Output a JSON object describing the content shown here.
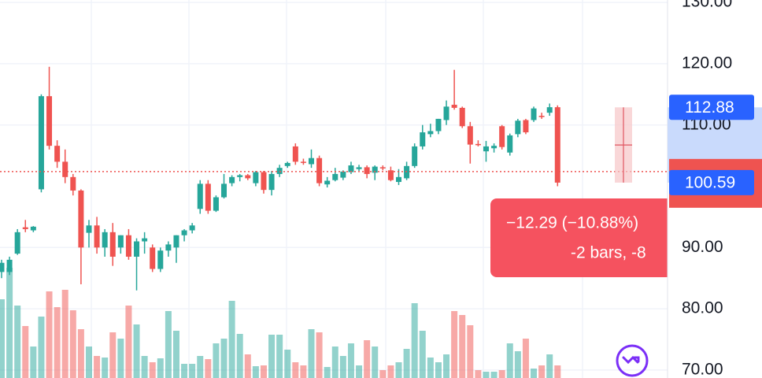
{
  "chart_data": {
    "type": "candlestick",
    "ylim": [
      68.7,
      130.4
    ],
    "yticks": [
      {
        "value": 70,
        "label": "70.00"
      },
      {
        "value": 80,
        "label": "80.00"
      },
      {
        "value": 90,
        "label": "90.00"
      },
      {
        "value": 110,
        "label": "110.00"
      },
      {
        "value": 120,
        "label": "120.00"
      },
      {
        "value": 130,
        "label": "130.00"
      }
    ],
    "grid": true,
    "up_color": "#26a69a",
    "down_color": "#ef5350",
    "candles": [
      [
        86,
        88,
        85,
        87.5
      ],
      [
        86,
        88.5,
        85.5,
        88
      ],
      [
        89,
        93,
        88.8,
        92.5
      ],
      [
        93.3,
        94.5,
        92.5,
        93
      ],
      [
        92.8,
        93.5,
        92.5,
        93.4
      ],
      [
        99.5,
        115,
        99,
        114.7
      ],
      [
        114.7,
        119.5,
        106,
        106.6
      ],
      [
        106.6,
        107.5,
        103,
        104
      ],
      [
        104,
        106,
        100.5,
        101.5
      ],
      [
        101.5,
        102,
        98.5,
        99.3
      ],
      [
        99.3,
        99.5,
        84,
        90
      ],
      [
        92.4,
        94.5,
        90,
        93.6
      ],
      [
        93.6,
        95,
        89,
        90
      ],
      [
        90,
        93,
        88.5,
        92.5
      ],
      [
        92.5,
        94,
        87,
        88.5
      ],
      [
        90,
        92,
        89,
        92
      ],
      [
        92,
        93,
        88,
        88.5
      ],
      [
        88.5,
        91.5,
        83,
        91
      ],
      [
        91,
        92.5,
        89,
        91.5
      ],
      [
        90,
        90.5,
        86,
        86.5
      ],
      [
        86.5,
        90,
        86,
        89.5
      ],
      [
        89.5,
        91,
        88.5,
        90.5
      ],
      [
        90,
        92,
        87.5,
        92
      ],
      [
        92,
        93,
        91,
        92.8
      ],
      [
        92.8,
        94,
        92.3,
        93.6
      ],
      [
        96.3,
        101,
        95.5,
        100.4
      ],
      [
        100.4,
        101,
        95.5,
        96
      ],
      [
        96,
        98.5,
        95.8,
        98.2
      ],
      [
        98.2,
        102,
        98,
        100.4
      ],
      [
        100.5,
        101.8,
        100,
        101.5
      ],
      [
        101.5,
        102,
        100.8,
        101.8
      ],
      [
        101.8,
        102,
        101,
        101.3
      ],
      [
        100.5,
        102.5,
        100,
        102.3
      ],
      [
        102.3,
        102.5,
        98.8,
        99.4
      ],
      [
        99.4,
        102.5,
        98.5,
        102
      ],
      [
        102,
        103.5,
        101.5,
        103
      ],
      [
        103.3,
        104,
        103,
        103.8
      ],
      [
        106.5,
        107,
        103.5,
        104
      ],
      [
        104,
        104.5,
        103.5,
        103.9
      ],
      [
        103.6,
        106,
        103,
        104.6
      ],
      [
        104.6,
        105,
        100,
        100.5
      ],
      [
        100.3,
        101.5,
        99.8,
        100.9
      ],
      [
        101,
        103,
        100.8,
        102
      ],
      [
        101.4,
        102.6,
        101,
        102.4
      ],
      [
        102.3,
        104,
        102,
        103.4
      ],
      [
        102.8,
        103.5,
        102.5,
        103.1
      ],
      [
        103.1,
        103.4,
        101.3,
        102
      ],
      [
        102.2,
        103.4,
        101,
        103.2
      ],
      [
        103.1,
        103.4,
        102.6,
        103
      ],
      [
        102.6,
        103.2,
        100.8,
        101
      ],
      [
        100.7,
        102.8,
        100.2,
        101.5
      ],
      [
        101.3,
        104,
        101,
        103.3
      ],
      [
        103.3,
        107,
        103,
        106.5
      ],
      [
        106.5,
        110,
        106,
        108.8
      ],
      [
        108.5,
        110.2,
        108,
        109
      ],
      [
        109,
        111,
        108.5,
        111
      ],
      [
        110.8,
        114,
        110,
        113
      ],
      [
        113.3,
        119,
        112.5,
        112.8
      ],
      [
        112.8,
        113,
        109.5,
        109.8
      ],
      [
        109.8,
        110.5,
        103.7,
        106.8
      ],
      [
        106.9,
        107.5,
        106.5,
        106.7
      ],
      [
        105.7,
        107.4,
        104,
        106.5
      ],
      [
        106.2,
        107,
        105.5,
        106.6
      ],
      [
        109.8,
        110,
        106,
        106.4
      ],
      [
        105.5,
        108.6,
        105,
        108.3
      ],
      [
        108.5,
        111,
        108,
        110.7
      ],
      [
        110.8,
        111,
        108.5,
        108.8
      ],
      [
        110.8,
        113,
        110.5,
        112.7
      ],
      [
        111.5,
        112,
        111,
        111.3
      ],
      [
        112,
        113.5,
        111.5,
        112.9
      ],
      [
        112.9,
        113.2,
        100,
        100.59
      ]
    ],
    "volume": [
      100,
      140,
      92,
      66,
      40,
      78,
      110,
      90,
      112,
      86,
      62,
      40,
      28,
      26,
      58,
      50,
      92,
      68,
      28,
      20,
      25,
      85,
      60,
      18,
      18,
      28,
      24,
      44,
      50,
      98,
      56,
      30,
      15,
      16,
      55,
      55,
      36,
      20,
      16,
      62,
      58,
      14,
      40,
      28,
      44,
      16,
      48,
      40,
      10,
      16,
      20,
      37,
      95,
      60,
      26,
      20,
      30,
      85,
      80,
      67,
      10,
      8,
      8,
      10,
      44,
      34,
      50,
      12,
      16,
      30,
      16
    ],
    "vlim": [
      0,
      260
    ],
    "price_line": 102.4,
    "price_labels": [
      112.88,
      100.59
    ],
    "measure": {
      "change": "−12.29 (−10.88%)",
      "bars": "-2 bars, -8"
    }
  }
}
